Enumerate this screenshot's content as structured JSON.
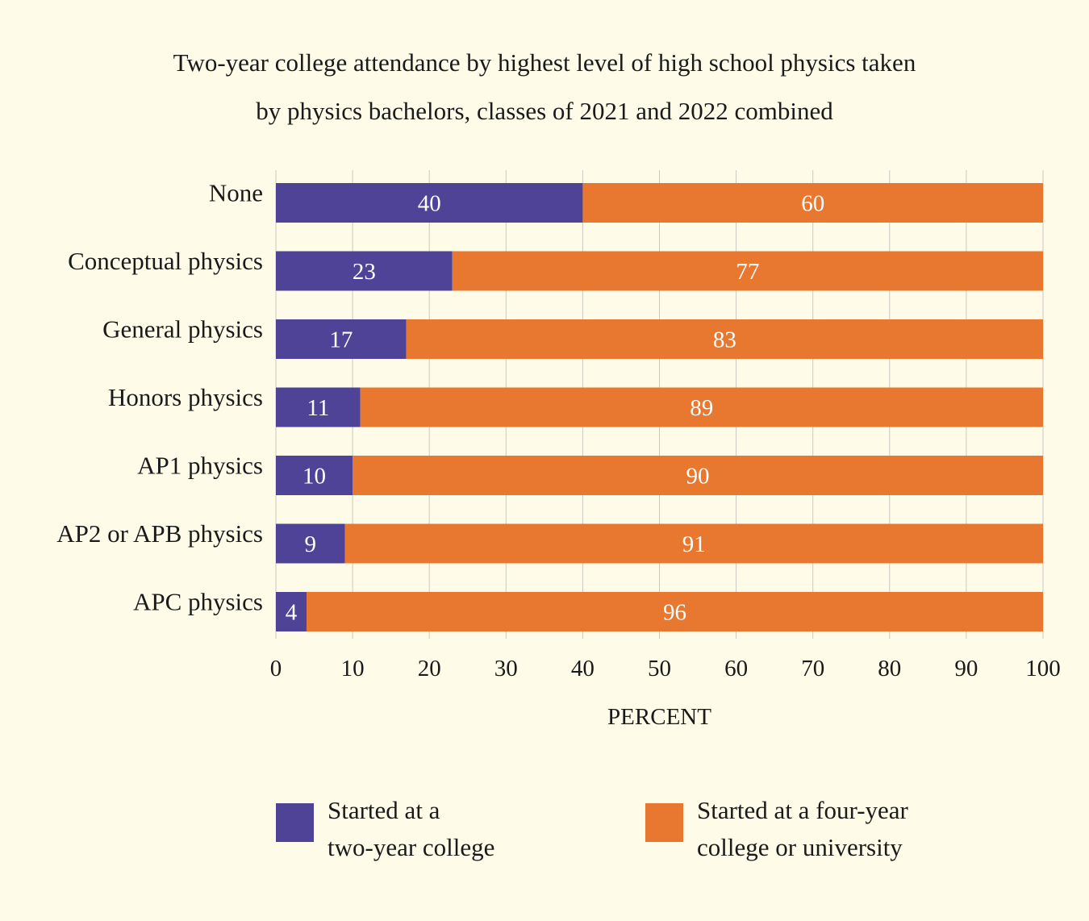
{
  "chart_data": {
    "type": "bar",
    "orientation": "horizontal",
    "stacked": true,
    "title_lines": [
      "Two-year college attendance by highest level of high school physics taken",
      "by physics bachelors, classes of 2021 and 2022 combined"
    ],
    "xlabel": "PERCENT",
    "ylabel": "",
    "xlim": [
      0,
      100
    ],
    "xticks": [
      0,
      10,
      20,
      30,
      40,
      50,
      60,
      70,
      80,
      90,
      100
    ],
    "grid": "vertical",
    "categories": [
      "None",
      "Conceptual physics",
      "General physics",
      "Honors physics",
      "AP1 physics",
      "AP2 or APB physics",
      "APC physics"
    ],
    "series": [
      {
        "name": "Started at a two-year college",
        "legend_lines": [
          "Started at a",
          "two-year college"
        ],
        "color": "#4f4398",
        "values": [
          40,
          23,
          17,
          11,
          10,
          9,
          4
        ]
      },
      {
        "name": "Started at a four-year college or university",
        "legend_lines": [
          "Started at a four-year",
          "college or university"
        ],
        "color": "#e8782f",
        "values": [
          60,
          77,
          83,
          89,
          90,
          91,
          96
        ]
      }
    ],
    "legend_position": "bottom",
    "data_labels": true
  }
}
